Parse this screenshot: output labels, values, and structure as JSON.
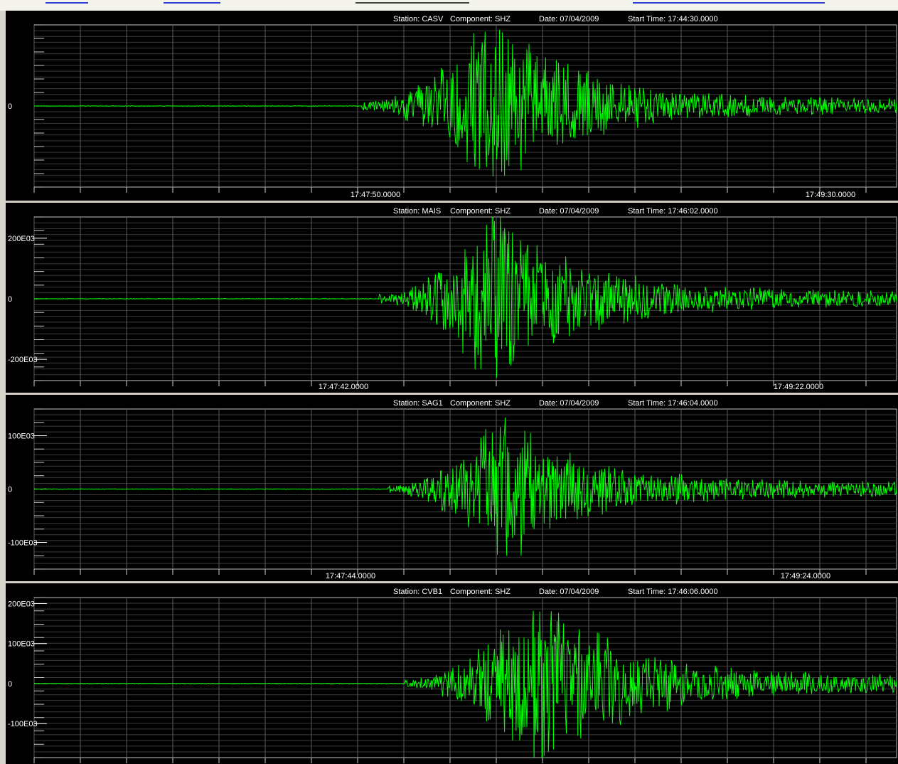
{
  "chart_data": [
    {
      "type": "line",
      "station": "CASV",
      "component": "SHZ",
      "date": "07/04/2009",
      "start_time": "17:44:30.0000",
      "header": {
        "station_text": "Station: CASV",
        "component_text": "Component: SHZ",
        "date_text": "Date: 07/04/2009",
        "start_text": "Start Time: 17:44:30.0000"
      },
      "y_tick_labels": [
        {
          "label": "0",
          "value": 0
        }
      ],
      "ylim": [
        -250000,
        250000
      ],
      "x_tick_labels": [
        "17:47:50.0000",
        "17:49:30.0000"
      ],
      "signal": {
        "onset": 0.38,
        "peak": 0.53,
        "peak_amp": 1.0,
        "coda": 0.0006,
        "seed": 11
      },
      "series": [
        {
          "values": []
        }
      ]
    },
    {
      "type": "line",
      "station": "MAIS",
      "component": "SHZ",
      "date": "07/04/2009",
      "start_time": "17:46:02.0000",
      "header": {
        "station_text": "Station: MAIS",
        "component_text": "Component: SHZ",
        "date_text": "Date: 07/04/2009",
        "start_text": "Start Time: 17:46:02.0000"
      },
      "y_tick_labels": [
        {
          "label": "200E03",
          "value": 200000
        },
        {
          "label": "0",
          "value": 0
        },
        {
          "label": "-200E03",
          "value": -200000
        }
      ],
      "ylim": [
        -270000,
        270000
      ],
      "x_tick_labels": [
        "17:47:42.0000",
        "17:49:22.0000"
      ],
      "signal": {
        "onset": 0.4,
        "peak": 0.53,
        "peak_amp": 1.0,
        "coda": 0.0007,
        "seed": 23
      },
      "series": [
        {
          "values": []
        }
      ]
    },
    {
      "type": "line",
      "station": "SAG1",
      "component": "SHZ",
      "date": "07/04/2009",
      "start_time": "17:46:04.0000",
      "header": {
        "station_text": "Station: SAG1",
        "component_text": "Component: SHZ",
        "date_text": "Date: 07/04/2009",
        "start_text": "Start Time: 17:46:04.0000"
      },
      "y_tick_labels": [
        {
          "label": "100E03",
          "value": 100000
        },
        {
          "label": "0",
          "value": 0
        },
        {
          "label": "-100E03",
          "value": -100000
        }
      ],
      "ylim": [
        -150000,
        150000
      ],
      "x_tick_labels": [
        "17:47:44.0000",
        "17:49:24.0000"
      ],
      "signal": {
        "onset": 0.41,
        "peak": 0.54,
        "peak_amp": 0.85,
        "coda": 0.0006,
        "seed": 37
      },
      "series": [
        {
          "values": []
        }
      ]
    },
    {
      "type": "line",
      "station": "CVB1",
      "component": "SHZ",
      "date": "07/04/2009",
      "start_time": "17:46:06.0000",
      "header": {
        "station_text": "Station: CVB1",
        "component_text": "Component: SHZ",
        "date_text": "Date: 07/04/2009",
        "start_text": "Start Time: 17:46:06.0000"
      },
      "y_tick_labels": [
        {
          "label": "200E03",
          "value": 200000
        },
        {
          "label": "100E03",
          "value": 100000
        },
        {
          "label": "0",
          "value": 0
        },
        {
          "label": "-100E03",
          "value": -100000
        }
      ],
      "ylim": [
        -185000,
        215000
      ],
      "x_tick_labels": [
        "",
        ""
      ],
      "signal": {
        "onset": 0.43,
        "peak": 0.58,
        "peak_amp": 0.95,
        "coda": 0.0008,
        "seed": 53
      },
      "series": [
        {
          "values": []
        }
      ]
    }
  ],
  "colors": {
    "background": "#000000",
    "trace": "#00ff00",
    "grid": "#5a5a5a",
    "grid_minor": "#3a3a3a",
    "text": "#ffffff",
    "separator": "#d4d0c8"
  }
}
